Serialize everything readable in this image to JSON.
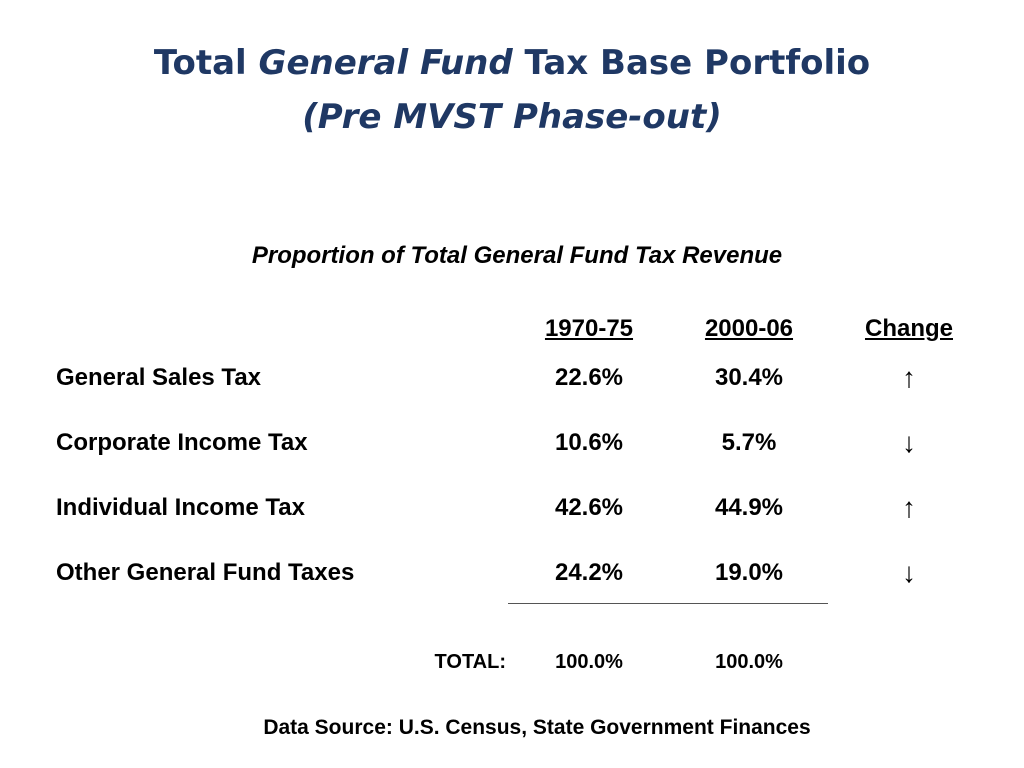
{
  "title": {
    "line1_prefix": "Total ",
    "line1_italic": "General Fund",
    "line1_suffix": " Tax Base Portfolio",
    "line2": "(Pre MVST Phase-out)"
  },
  "subtitle": "Proportion of Total General Fund Tax Revenue",
  "table": {
    "columns": [
      "1970-75",
      "2000-06",
      "Change"
    ],
    "rows": [
      {
        "label": "General Sales Tax",
        "v1": "22.6%",
        "v2": "30.4%",
        "change": "↑",
        "change_icon": "arrow-up-icon"
      },
      {
        "label": "Corporate Income Tax",
        "v1": "10.6%",
        "v2": "5.7%",
        "change": "↓",
        "change_icon": "arrow-down-icon"
      },
      {
        "label": "Individual Income Tax",
        "v1": "42.6%",
        "v2": "44.9%",
        "change": "↑",
        "change_icon": "arrow-up-icon"
      },
      {
        "label": "Other General Fund Taxes",
        "v1": "24.2%",
        "v2": "19.0%",
        "change": "↓",
        "change_icon": "arrow-down-icon"
      }
    ],
    "total": {
      "label": "TOTAL:",
      "v1": "100.0%",
      "v2": "100.0%"
    }
  },
  "source": "Data Source: U.S. Census, State Government Finances",
  "colors": {
    "title": "#1f3864",
    "text": "#000000",
    "rule": "#555555"
  }
}
